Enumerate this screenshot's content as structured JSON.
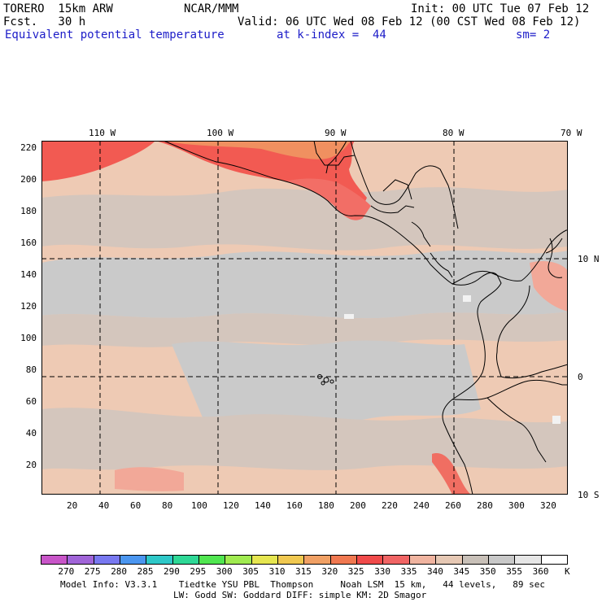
{
  "header": {
    "model": "TORERO  15km ARW",
    "org": "NCAR/MMM",
    "init": "Init: 00 UTC Tue 07 Feb 12",
    "fcst": "Fcst.   30 h",
    "valid": "Valid: 06 UTC Wed 08 Feb 12 (00 CST Wed 08 Feb 12)",
    "field": "Equivalent potential temperature",
    "level": "at k-index =  44",
    "smooth": "sm= 2"
  },
  "axes": {
    "y_ticks": [
      "220",
      "200",
      "180",
      "160",
      "140",
      "120",
      "100",
      "80",
      "60",
      "40",
      "20"
    ],
    "x_ticks": [
      "20",
      "40",
      "60",
      "80",
      "100",
      "120",
      "140",
      "160",
      "180",
      "200",
      "220",
      "240",
      "260",
      "280",
      "300",
      "320"
    ],
    "lon_labels": [
      "110 W",
      "100 W",
      "90 W",
      "80 W",
      "70 W"
    ],
    "lat_labels": [
      "10 N",
      "0",
      "10 S"
    ]
  },
  "colorbar": {
    "colors": [
      "#c855c8",
      "#a064d8",
      "#7878f0",
      "#4b96f0",
      "#2ec8c8",
      "#2ed896",
      "#50e650",
      "#a0eb50",
      "#e6e650",
      "#f0c850",
      "#f0a064",
      "#f07850",
      "#f04a4a",
      "#f06464",
      "#f0b4a0",
      "#e6c8b4",
      "#c8c0b8",
      "#c8c8c8",
      "#e6e6e6",
      "#ffffff"
    ],
    "labels": [
      "270",
      "275",
      "280",
      "285",
      "290",
      "295",
      "300",
      "305",
      "310",
      "315",
      "320",
      "325",
      "330",
      "335",
      "340",
      "345",
      "350",
      "355",
      "360",
      "K"
    ]
  },
  "footer": {
    "line1": "Model Info: V3.3.1    Tiedtke YSU PBL  Thompson     Noah LSM  15 km,   44 levels,   89 sec",
    "line2": "LW: Godd SW: Goddard DIFF: simple KM: 2D Smagor"
  }
}
